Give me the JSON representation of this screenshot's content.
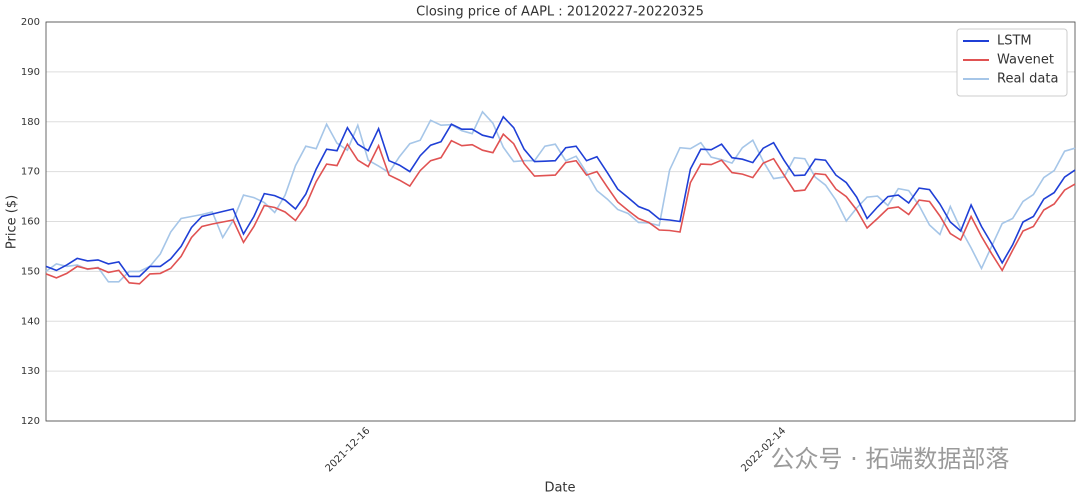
{
  "chart_data": {
    "type": "line",
    "title": "Closing price of AAPL : 20120227-20220325",
    "x_label": "Date",
    "y_label": "Price ($)",
    "watermark": "公众号 · 拓端数据部落",
    "categories": [
      null,
      null,
      null,
      null,
      null,
      null,
      null,
      null,
      null,
      null,
      null,
      null,
      null,
      null,
      null,
      null,
      null,
      null,
      null,
      null,
      null,
      null,
      null,
      null,
      null,
      null,
      null,
      null,
      null,
      null,
      null,
      "2021-12-16",
      null,
      null,
      null,
      null,
      null,
      null,
      null,
      null,
      null,
      null,
      null,
      null,
      null,
      null,
      null,
      null,
      null,
      null,
      null,
      null,
      null,
      null,
      null,
      null,
      null,
      null,
      null,
      null,
      null,
      null,
      null,
      null,
      null,
      null,
      null,
      null,
      null,
      null,
      null,
      "2022-02-14",
      null,
      null,
      null,
      null,
      null,
      null,
      null,
      null,
      null,
      null,
      null,
      null,
      null,
      null,
      null,
      null,
      null,
      null,
      null,
      null,
      null,
      null,
      null,
      null,
      null,
      null,
      null,
      null
    ],
    "series": [
      {
        "name": "LSTM",
        "color": "#1f3fd6",
        "values": [
          151.0,
          150.2,
          151.3,
          152.6,
          152.1,
          152.3,
          151.5,
          151.9,
          149.0,
          149.0,
          151.0,
          151.0,
          152.5,
          155.0,
          158.8,
          161.0,
          161.5,
          162.0,
          162.5,
          157.5,
          161.0,
          165.6,
          165.2,
          164.3,
          162.5,
          165.5,
          170.5,
          174.5,
          174.2,
          178.8,
          175.5,
          174.2,
          178.6,
          172.2,
          171.3,
          170.0,
          173.2,
          175.3,
          176.0,
          179.5,
          178.5,
          178.5,
          177.3,
          176.8,
          181.0,
          178.8,
          174.5,
          172.0,
          172.1,
          172.2,
          174.8,
          175.1,
          172.2,
          173.0,
          169.8,
          166.5,
          164.8,
          163.0,
          162.2,
          160.5,
          160.3,
          160.0,
          170.5,
          174.5,
          174.4,
          175.5,
          172.8,
          172.5,
          171.8,
          174.7,
          175.8,
          172.3,
          169.2,
          169.3,
          172.5,
          172.3,
          169.3,
          167.8,
          164.9,
          160.6,
          162.9,
          165.0,
          165.3,
          163.7,
          166.7,
          166.4,
          163.5,
          159.9,
          158.1,
          163.3,
          159.0,
          155.5,
          151.7,
          155.3,
          159.9,
          161.0,
          164.5,
          165.8,
          168.9,
          170.3
        ]
      },
      {
        "name": "Wavenet",
        "color": "#e05252",
        "values": [
          149.5,
          148.7,
          149.6,
          151.0,
          150.5,
          150.7,
          149.8,
          150.2,
          147.7,
          147.5,
          149.5,
          149.6,
          150.6,
          153.0,
          156.8,
          159.0,
          159.5,
          159.9,
          160.3,
          155.8,
          159.0,
          163.2,
          162.8,
          161.9,
          160.2,
          163.2,
          168.0,
          171.5,
          171.2,
          175.5,
          172.3,
          171.0,
          175.2,
          169.3,
          168.3,
          167.1,
          170.2,
          172.2,
          172.8,
          176.2,
          175.2,
          175.4,
          174.3,
          173.8,
          177.5,
          175.6,
          171.6,
          169.1,
          169.2,
          169.3,
          171.8,
          172.2,
          169.3,
          170.0,
          166.9,
          163.9,
          162.2,
          160.6,
          159.8,
          158.3,
          158.2,
          157.9,
          167.8,
          171.5,
          171.4,
          172.3,
          169.8,
          169.5,
          168.8,
          171.7,
          172.6,
          169.3,
          166.1,
          166.3,
          169.6,
          169.4,
          166.5,
          165.0,
          162.3,
          158.7,
          160.6,
          162.6,
          162.9,
          161.4,
          164.3,
          164.0,
          161.1,
          157.6,
          156.3,
          161.0,
          157.0,
          153.5,
          150.2,
          154.2,
          158.1,
          159.0,
          162.3,
          163.5,
          166.3,
          167.5
        ]
      },
      {
        "name": "Real data",
        "color": "#a6c6e8",
        "values": [
          150.0,
          151.5,
          151.0,
          151.3,
          150.4,
          150.8,
          147.9,
          147.9,
          150.0,
          150.0,
          151.0,
          153.5,
          157.9,
          160.6,
          161.0,
          161.4,
          161.9,
          156.8,
          160.2,
          165.3,
          164.8,
          163.8,
          161.8,
          165.3,
          171.2,
          175.1,
          174.6,
          179.5,
          175.7,
          174.3,
          179.3,
          172.3,
          171.1,
          169.8,
          173.0,
          175.6,
          176.3,
          180.3,
          179.3,
          179.4,
          178.2,
          177.6,
          182.0,
          179.7,
          174.9,
          172.0,
          172.2,
          172.2,
          175.1,
          175.5,
          172.2,
          173.1,
          169.8,
          166.2,
          164.5,
          162.4,
          161.6,
          159.8,
          159.7,
          159.2,
          170.3,
          174.8,
          174.6,
          175.8,
          172.9,
          172.4,
          171.7,
          174.8,
          176.3,
          172.1,
          168.6,
          168.9,
          172.8,
          172.6,
          168.9,
          167.3,
          164.3,
          160.1,
          162.7,
          164.9,
          165.1,
          163.2,
          166.6,
          166.2,
          163.2,
          159.3,
          157.4,
          163.0,
          158.5,
          154.7,
          150.6,
          155.1,
          159.6,
          160.6,
          164.0,
          165.4,
          168.8,
          170.2,
          174.1,
          174.7
        ]
      }
    ],
    "ylim": [
      120,
      200
    ],
    "yticks": [
      120,
      130,
      140,
      150,
      160,
      170,
      180,
      190,
      200
    ],
    "grid": true,
    "legend": "upper right"
  }
}
